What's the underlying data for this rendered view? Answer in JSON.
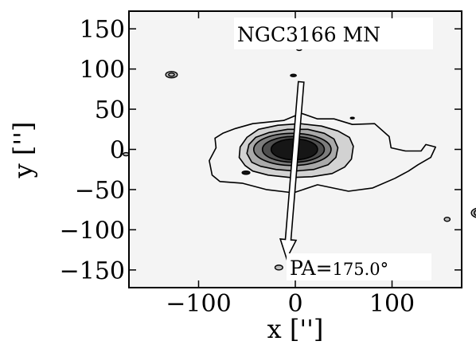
{
  "chart_data": {
    "type": "contour",
    "title": "",
    "object_label": "NGC3166 MN",
    "xlabel": "x ['']",
    "ylabel": "y ['']",
    "xlim": [
      -172,
      172
    ],
    "ylim": [
      -172,
      172
    ],
    "x_ticks": [
      -100,
      0,
      100
    ],
    "y_ticks": [
      150,
      100,
      50,
      0,
      -50,
      -100,
      -150
    ],
    "x_tick_labels": [
      "−100",
      "0",
      "100"
    ],
    "y_tick_labels": [
      "150",
      "100",
      "50",
      "0",
      "−50",
      "−100",
      "−150"
    ],
    "pa_label_prefix": "PA=",
    "pa_value": "175.0°",
    "position_angle_deg": 175.0,
    "grid": false,
    "contour_fill_colors": [
      "#f4f4f4",
      "#d2d2d2",
      "#a9a9a9",
      "#7c7c7c",
      "#4e4e4e",
      "#161616"
    ],
    "contours": [
      {
        "level": 1,
        "shape": "isophote",
        "points": [
          [
            -78,
            -40
          ],
          [
            -86,
            -32
          ],
          [
            -89,
            -14
          ],
          [
            -82,
            2
          ],
          [
            -83,
            14
          ],
          [
            -75,
            20
          ],
          [
            -62,
            26
          ],
          [
            -44,
            32
          ],
          [
            -12,
            36
          ],
          [
            6,
            45
          ],
          [
            23,
            38
          ],
          [
            40,
            38
          ],
          [
            59,
            31
          ],
          [
            82,
            32
          ],
          [
            97,
            16
          ],
          [
            99,
            2
          ],
          [
            114,
            -2
          ],
          [
            130,
            -2
          ],
          [
            135,
            6
          ],
          [
            145,
            3
          ],
          [
            140,
            -10
          ],
          [
            127,
            -19
          ],
          [
            117,
            -27
          ],
          [
            103,
            -36
          ],
          [
            80,
            -48
          ],
          [
            55,
            -52
          ],
          [
            23,
            -44
          ],
          [
            -2,
            -54
          ],
          [
            -30,
            -50
          ],
          [
            -55,
            -42
          ]
        ]
      },
      {
        "level": 2,
        "shape": "isophote",
        "points": [
          [
            -52,
            -20
          ],
          [
            -58,
            -10
          ],
          [
            -57,
            3
          ],
          [
            -50,
            15
          ],
          [
            -38,
            25
          ],
          [
            -18,
            30
          ],
          [
            5,
            32
          ],
          [
            27,
            29
          ],
          [
            44,
            23
          ],
          [
            56,
            15
          ],
          [
            60,
            4
          ],
          [
            58,
            -12
          ],
          [
            51,
            -22
          ],
          [
            38,
            -30
          ],
          [
            17,
            -34
          ],
          [
            -5,
            -35
          ],
          [
            -28,
            -32
          ],
          [
            -44,
            -27
          ]
        ]
      },
      {
        "level": 3,
        "shape": "isophote",
        "points": [
          [
            -45,
            -16
          ],
          [
            -50,
            -5
          ],
          [
            -48,
            6
          ],
          [
            -41,
            15
          ],
          [
            -27,
            21
          ],
          [
            -8,
            25
          ],
          [
            13,
            25
          ],
          [
            30,
            20
          ],
          [
            40,
            13
          ],
          [
            44,
            2
          ],
          [
            42,
            -10
          ],
          [
            34,
            -19
          ],
          [
            19,
            -25
          ],
          [
            0,
            -27
          ],
          [
            -20,
            -25
          ],
          [
            -36,
            -21
          ]
        ]
      },
      {
        "level": 4,
        "shape": "ellipse",
        "cx": -3,
        "cy": 0,
        "rx": 40,
        "ry": 20
      },
      {
        "level": 5,
        "shape": "ellipse",
        "cx": -2,
        "cy": 0,
        "rx": 32,
        "ry": 16
      },
      {
        "level": 6,
        "shape": "ellipse",
        "cx": -1,
        "cy": 0,
        "rx": 24,
        "ry": 13
      }
    ],
    "features": [
      {
        "kind": "dark-blob",
        "x": -51,
        "y": -29,
        "rx": 4,
        "ry": 2
      },
      {
        "kind": "dark-blob",
        "x": -2,
        "y": 92,
        "rx": 3,
        "ry": 1.5
      },
      {
        "kind": "dark-blob",
        "x": 59,
        "y": 39,
        "rx": 2,
        "ry": 1
      },
      {
        "kind": "ring",
        "x": -128,
        "y": 93,
        "rx": 6,
        "ry": 4
      },
      {
        "kind": "ring",
        "x": -128,
        "y": 93,
        "rx": 3,
        "ry": 2
      },
      {
        "kind": "ring",
        "x": 4,
        "y": 126,
        "rx": 3,
        "ry": 3
      },
      {
        "kind": "ring",
        "x": -175,
        "y": -6,
        "rx": 3,
        "ry": 2
      },
      {
        "kind": "ring",
        "x": 157,
        "y": -87,
        "rx": 3,
        "ry": 2.5
      },
      {
        "kind": "ring",
        "x": 190,
        "y": -79,
        "rx": 8,
        "ry": 6
      },
      {
        "kind": "ring",
        "x": 190,
        "y": -79,
        "rx": 5,
        "ry": 4
      },
      {
        "kind": "ring",
        "x": -17,
        "y": -147,
        "rx": 4,
        "ry": 3
      }
    ],
    "arrow": {
      "x1": 6,
      "y1": 84,
      "x2": -9,
      "y2": -136
    }
  }
}
